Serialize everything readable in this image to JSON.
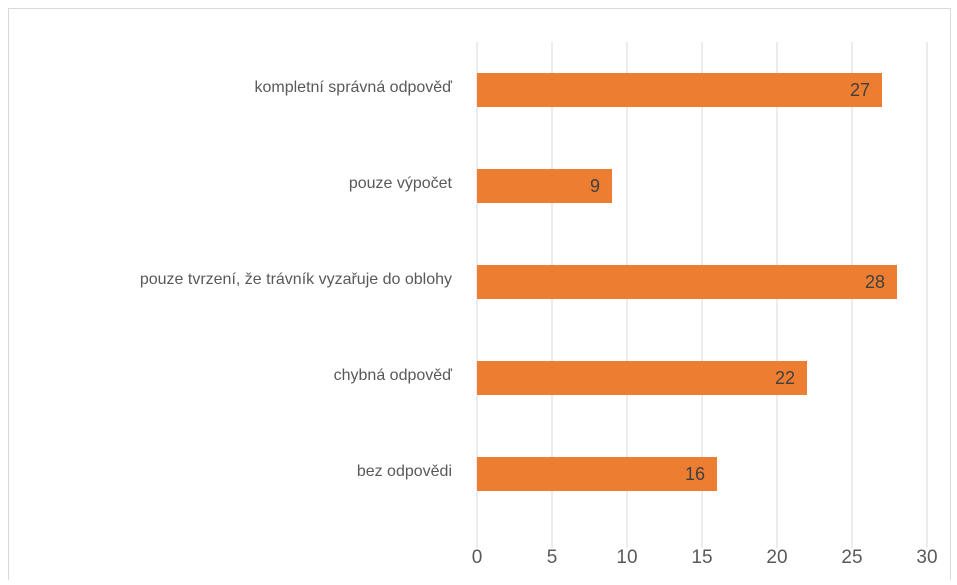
{
  "chart_data": {
    "type": "barh",
    "categories": [
      "kompletní správná odpověď",
      "pouze výpočet",
      "pouze tvrzení, že trávník vyzařuje do oblohy",
      "chybná odpověď",
      "bez odpovědi"
    ],
    "values": [
      27,
      9,
      28,
      22,
      16
    ],
    "color": "#ed7d31",
    "xlim": [
      0,
      30
    ],
    "xticks": [
      0,
      5,
      10,
      15,
      20,
      25,
      30
    ],
    "grid": true
  }
}
